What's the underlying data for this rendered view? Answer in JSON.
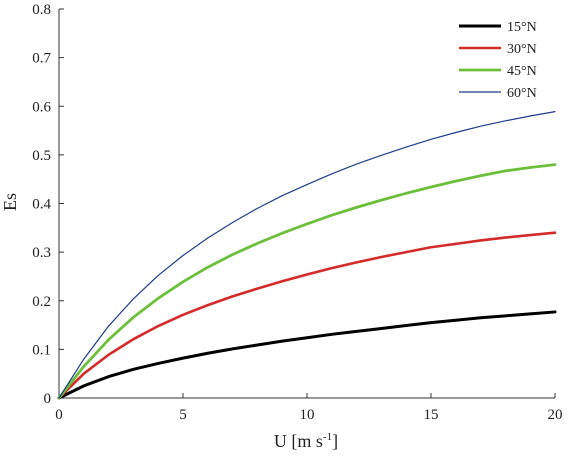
{
  "chart_data": {
    "type": "line",
    "title": "",
    "xlabel": "U [m s",
    "xlabel_sup": "-1",
    "xlabel_end": "]",
    "ylabel": "Es",
    "xlim": [
      0,
      20
    ],
    "ylim": [
      0,
      0.8
    ],
    "xticks": [
      0,
      5,
      10,
      15,
      20
    ],
    "yticks": [
      0,
      0.1,
      0.2,
      0.3,
      0.4,
      0.5,
      0.6,
      0.7,
      0.8
    ],
    "xtick_labels": [
      "0",
      "5",
      "10",
      "15",
      "20"
    ],
    "ytick_labels": [
      "0",
      "0.1",
      "0.2",
      "0.3",
      "0.4",
      "0.5",
      "0.6",
      "0.7",
      "0.8"
    ],
    "grid": false,
    "legend_position": "top-right",
    "x": [
      0,
      1,
      2,
      3,
      4,
      5,
      6,
      7,
      8,
      9,
      10,
      11,
      12,
      13,
      14,
      15,
      16,
      17,
      18,
      19,
      20
    ],
    "series": [
      {
        "name": "15°N",
        "color": "#000000",
        "values": [
          0,
          0.025,
          0.044,
          0.059,
          0.071,
          0.082,
          0.092,
          0.101,
          0.109,
          0.117,
          0.124,
          0.131,
          0.137,
          0.143,
          0.149,
          0.155,
          0.16,
          0.165,
          0.169,
          0.173,
          0.177
        ]
      },
      {
        "name": "30°N",
        "color": "#d42a2a",
        "values": [
          0,
          0.05,
          0.089,
          0.121,
          0.148,
          0.171,
          0.191,
          0.209,
          0.225,
          0.24,
          0.254,
          0.267,
          0.279,
          0.29,
          0.3,
          0.31,
          0.317,
          0.324,
          0.33,
          0.335,
          0.34
        ]
      },
      {
        "name": "45°N",
        "color": "#6cbf3a",
        "values": [
          0,
          0.065,
          0.12,
          0.166,
          0.205,
          0.239,
          0.269,
          0.295,
          0.318,
          0.339,
          0.358,
          0.376,
          0.392,
          0.407,
          0.421,
          0.434,
          0.446,
          0.457,
          0.467,
          0.474,
          0.48
        ]
      },
      {
        "name": "60°N",
        "color": "#1f3c8c",
        "values": [
          0,
          0.08,
          0.148,
          0.204,
          0.252,
          0.293,
          0.329,
          0.361,
          0.39,
          0.416,
          0.439,
          0.461,
          0.481,
          0.499,
          0.516,
          0.532,
          0.546,
          0.559,
          0.57,
          0.58,
          0.589
        ]
      }
    ]
  }
}
